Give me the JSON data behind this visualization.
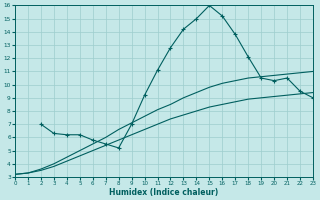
{
  "xlabel": "Humidex (Indice chaleur)",
  "background_color": "#c5e8e8",
  "grid_color": "#9ecece",
  "line_color": "#005f5f",
  "x_range": [
    0,
    23
  ],
  "y_range": [
    3,
    16
  ],
  "x_ticks": [
    0,
    1,
    2,
    3,
    4,
    5,
    6,
    7,
    8,
    9,
    10,
    11,
    12,
    13,
    14,
    15,
    16,
    17,
    18,
    19,
    20,
    21,
    22,
    23
  ],
  "y_ticks": [
    3,
    4,
    5,
    6,
    7,
    8,
    9,
    10,
    11,
    12,
    13,
    14,
    15,
    16
  ],
  "line1_x": [
    0,
    1,
    2,
    3,
    4,
    5,
    6,
    7,
    8,
    9,
    10,
    11,
    12,
    13,
    14,
    15,
    16,
    17,
    18,
    19,
    20,
    21,
    22,
    23
  ],
  "line1_y": [
    3.2,
    3.3,
    3.5,
    3.8,
    4.2,
    4.6,
    5.0,
    5.4,
    5.8,
    6.2,
    6.6,
    7.0,
    7.4,
    7.7,
    8.0,
    8.3,
    8.5,
    8.7,
    8.9,
    9.0,
    9.1,
    9.2,
    9.3,
    9.4
  ],
  "line2_x": [
    0,
    1,
    2,
    3,
    4,
    5,
    6,
    7,
    8,
    9,
    10,
    11,
    12,
    13,
    14,
    15,
    16,
    17,
    18,
    19,
    20,
    21,
    22,
    23
  ],
  "line2_y": [
    3.2,
    3.3,
    3.6,
    4.0,
    4.5,
    5.0,
    5.5,
    6.0,
    6.6,
    7.1,
    7.6,
    8.1,
    8.5,
    9.0,
    9.4,
    9.8,
    10.1,
    10.3,
    10.5,
    10.6,
    10.7,
    10.8,
    10.9,
    11.0
  ],
  "line3_x": [
    2,
    3,
    4,
    5,
    6,
    7,
    8,
    9,
    10,
    11,
    12,
    13,
    14,
    15,
    16,
    17,
    18,
    19,
    20,
    21,
    22,
    23
  ],
  "line3_y": [
    7.0,
    6.3,
    6.2,
    6.2,
    5.8,
    5.5,
    5.2,
    7.0,
    9.2,
    11.1,
    12.8,
    14.2,
    15.0,
    16.0,
    15.2,
    13.8,
    12.1,
    10.5,
    10.3,
    10.5,
    9.5,
    9.0
  ]
}
